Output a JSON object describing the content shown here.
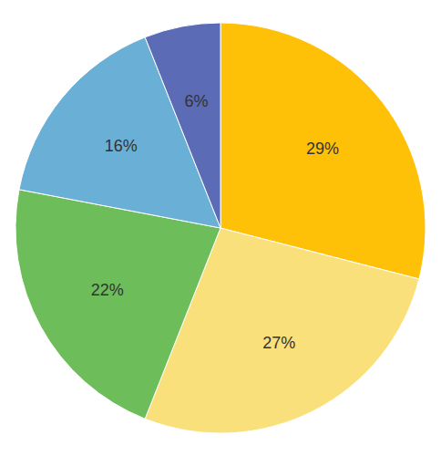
{
  "chart_data": {
    "type": "pie",
    "values": [
      29,
      27,
      22,
      16,
      6
    ],
    "value_labels": [
      "29%",
      "27%",
      "22%",
      "16%",
      "6%"
    ],
    "colors": [
      "#FFC107",
      "#FAE07A",
      "#6DBD5A",
      "#6AAFD6",
      "#5B6BB5"
    ],
    "data_labels": true
  }
}
